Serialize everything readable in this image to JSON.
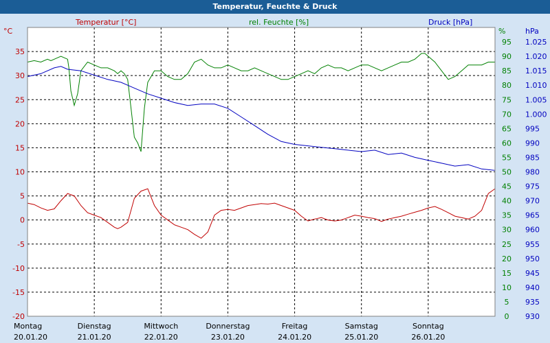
{
  "window_title": "Temperatur, Feuchte & Druck",
  "chart_data": {
    "type": "line",
    "title": "Temperatur, Feuchte & Druck",
    "x_categories": [
      {
        "day": "Montag",
        "date": "20.01.20"
      },
      {
        "day": "Dienstag",
        "date": "21.01.20"
      },
      {
        "day": "Mittwoch",
        "date": "22.01.20"
      },
      {
        "day": "Donnerstag",
        "date": "23.01.20"
      },
      {
        "day": "Freitag",
        "date": "24.01.20"
      },
      {
        "day": "Samstag",
        "date": "25.01.20"
      },
      {
        "day": "Sonntag",
        "date": "26.01.20"
      }
    ],
    "x_range_days": [
      0,
      7
    ],
    "axes": {
      "temperature": {
        "unit_label": "°C",
        "series_label": "Temperatur [°C]",
        "ylim": [
          -20,
          40
        ],
        "ticks": [
          -20,
          -15,
          -10,
          -5,
          0,
          5,
          10,
          15,
          20,
          25,
          30,
          35
        ],
        "color": "#c00000"
      },
      "humidity": {
        "unit_label": "%",
        "series_label": "rel. Feuchte [%]",
        "ylim": [
          0,
          100
        ],
        "ticks": [
          0,
          5,
          10,
          15,
          20,
          25,
          30,
          35,
          40,
          45,
          50,
          55,
          60,
          65,
          70,
          75,
          80,
          85,
          90,
          95
        ],
        "color": "#008000"
      },
      "pressure": {
        "unit_label": "hPa",
        "series_label": "Druck [hPa]",
        "ylim": [
          930,
          1030
        ],
        "ticks": [
          930,
          935,
          940,
          945,
          950,
          955,
          960,
          965,
          970,
          975,
          980,
          985,
          990,
          995,
          1000,
          1005,
          1010,
          1015,
          1020,
          1025
        ],
        "tick_labels": [
          "930",
          "935",
          "940",
          "945",
          "950",
          "955",
          "960",
          "965",
          "970",
          "975",
          "980",
          "985",
          "990",
          "995",
          "1.000",
          "1.005",
          "1.010",
          "1.015",
          "1.020",
          "1.025"
        ],
        "color": "#0000c0"
      }
    },
    "series": [
      {
        "name": "Temperatur [°C]",
        "axis": "temperature",
        "color": "#c00000",
        "x": [
          0,
          0.1,
          0.2,
          0.3,
          0.4,
          0.5,
          0.6,
          0.7,
          0.8,
          0.9,
          1.0,
          1.1,
          1.2,
          1.3,
          1.35,
          1.4,
          1.5,
          1.6,
          1.7,
          1.8,
          1.9,
          2.0,
          2.1,
          2.2,
          2.3,
          2.4,
          2.5,
          2.6,
          2.7,
          2.8,
          2.9,
          3.0,
          3.1,
          3.2,
          3.3,
          3.4,
          3.5,
          3.6,
          3.7,
          3.8,
          3.9,
          4.0,
          4.1,
          4.2,
          4.3,
          4.4,
          4.5,
          4.6,
          4.7,
          4.8,
          4.9,
          5.0,
          5.1,
          5.2,
          5.3,
          5.4,
          5.5,
          5.6,
          5.7,
          5.8,
          5.9,
          6.0,
          6.1,
          6.2,
          6.3,
          6.4,
          6.5,
          6.6,
          6.7,
          6.8,
          6.9,
          7.0
        ],
        "y": [
          3.5,
          3.2,
          2.5,
          2.0,
          2.3,
          4.0,
          5.5,
          5.0,
          3.0,
          1.5,
          1.0,
          0.5,
          -0.5,
          -1.5,
          -1.8,
          -1.5,
          -0.5,
          4.5,
          6.0,
          6.5,
          3.0,
          1.0,
          0,
          -1.0,
          -1.5,
          -2.0,
          -3.0,
          -3.8,
          -2.5,
          1.0,
          2.0,
          2.2,
          2.0,
          2.5,
          3.0,
          3.2,
          3.4,
          3.3,
          3.5,
          3.0,
          2.5,
          2.0,
          0.8,
          -0.2,
          0.2,
          0.5,
          0,
          -0.2,
          0,
          0.5,
          1.0,
          0.8,
          0.5,
          0.3,
          -0.3,
          0.2,
          0.5,
          0.8,
          1.2,
          1.6,
          2.0,
          2.5,
          2.8,
          2.2,
          1.5,
          0.8,
          0.5,
          0.2,
          0.8,
          2.0,
          5.5,
          6.5
        ]
      },
      {
        "name": "rel. Feuchte [%]",
        "axis": "humidity",
        "color": "#008000",
        "x": [
          0,
          0.1,
          0.2,
          0.3,
          0.35,
          0.4,
          0.5,
          0.6,
          0.62,
          0.65,
          0.7,
          0.75,
          0.8,
          0.9,
          1.0,
          1.1,
          1.2,
          1.3,
          1.35,
          1.4,
          1.45,
          1.5,
          1.55,
          1.6,
          1.65,
          1.7,
          1.75,
          1.8,
          1.9,
          2.0,
          2.1,
          2.2,
          2.3,
          2.4,
          2.5,
          2.6,
          2.7,
          2.8,
          2.9,
          3.0,
          3.1,
          3.2,
          3.3,
          3.4,
          3.5,
          3.6,
          3.7,
          3.8,
          3.9,
          4.0,
          4.1,
          4.2,
          4.3,
          4.4,
          4.5,
          4.6,
          4.7,
          4.8,
          4.9,
          5.0,
          5.1,
          5.2,
          5.3,
          5.4,
          5.5,
          5.6,
          5.7,
          5.8,
          5.85,
          5.9,
          5.95,
          6.0,
          6.1,
          6.2,
          6.3,
          6.4,
          6.5,
          6.6,
          6.7,
          6.8,
          6.9,
          7.0
        ],
        "y": [
          88,
          88.5,
          88,
          89,
          88.5,
          89,
          90,
          89,
          86,
          78,
          73,
          77,
          85,
          88,
          87,
          86,
          86,
          85,
          84,
          85,
          84,
          82,
          72,
          62,
          60,
          57,
          72,
          81,
          85,
          85,
          83,
          82,
          82,
          84,
          88,
          89,
          87,
          86,
          86,
          87,
          86,
          85,
          85,
          86,
          85,
          84,
          83,
          82,
          82,
          83,
          84,
          85,
          84,
          86,
          87,
          86,
          86,
          85,
          86,
          87,
          87,
          86,
          85,
          86,
          87,
          88,
          88,
          89,
          90,
          91,
          91,
          90,
          88,
          85,
          82,
          83,
          85,
          87,
          87,
          87,
          88,
          88
        ]
      },
      {
        "name": "Druck [hPa]",
        "axis": "pressure",
        "color": "#0000c0",
        "x": [
          0,
          0.2,
          0.4,
          0.5,
          0.6,
          0.8,
          1.0,
          1.2,
          1.4,
          1.6,
          1.8,
          2.0,
          2.2,
          2.4,
          2.6,
          2.8,
          3.0,
          3.2,
          3.4,
          3.6,
          3.8,
          4.0,
          4.2,
          4.4,
          4.6,
          4.8,
          5.0,
          5.2,
          5.4,
          5.6,
          5.8,
          6.0,
          6.2,
          6.4,
          6.6,
          6.8,
          7.0
        ],
        "y": [
          1013,
          1014,
          1016,
          1016.5,
          1015.5,
          1015,
          1013.5,
          1012,
          1011,
          1009,
          1007,
          1005.5,
          1004,
          1003,
          1003.5,
          1003.5,
          1002,
          999,
          996,
          993,
          990.5,
          989.5,
          989,
          988.5,
          988,
          987.5,
          987,
          987.5,
          986,
          986.5,
          985,
          984,
          983,
          982,
          982.5,
          981,
          980.5
        ]
      }
    ]
  }
}
